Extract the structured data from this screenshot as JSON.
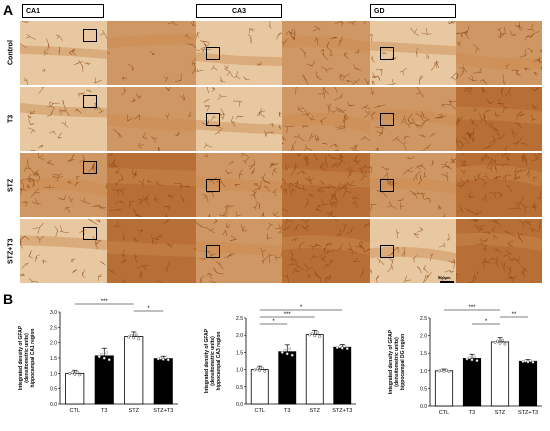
{
  "panel_a_label": "A",
  "panel_b_label": "B",
  "columns": [
    "CA1",
    "CA3",
    "GD"
  ],
  "rows": [
    "Control",
    "T3",
    "STZ",
    "STZ+T3"
  ],
  "scale_bar_text": "500µm",
  "colors": {
    "tissue": "#c98a4e",
    "tissue_dark": "#8b4513",
    "tissue_light": "#e8c8a0",
    "bar_black": "#000000"
  },
  "chart_data": [
    {
      "type": "bar",
      "title": "",
      "ylabel": "Integrated density of GFAP (densitometric units) hippocampal CA1 region",
      "categories": [
        "CTL",
        "T3",
        "STZ",
        "STZ+T3"
      ],
      "values": [
        1.0,
        1.57,
        2.2,
        1.48
      ],
      "errors": [
        0.1,
        0.25,
        0.15,
        0.08
      ],
      "fills": [
        "white",
        "black",
        "white",
        "black"
      ],
      "ylim": [
        0,
        3.0
      ],
      "yticks": [
        "0.0",
        "0.5",
        "1.0",
        "1.5",
        "2.0",
        "2.5",
        "3.0"
      ],
      "significance": [
        {
          "from": 0,
          "to": 2,
          "label": "***"
        },
        {
          "from": 2,
          "to": 3,
          "label": "*"
        }
      ]
    },
    {
      "type": "bar",
      "title": "",
      "ylabel": "Integrated density of GFAP (densitometric units) hippocampal CA3 region",
      "categories": [
        "CTL",
        "T3",
        "STZ",
        "STZ+T3"
      ],
      "values": [
        1.0,
        1.52,
        2.02,
        1.65
      ],
      "errors": [
        0.1,
        0.2,
        0.12,
        0.08
      ],
      "fills": [
        "white",
        "black",
        "white",
        "black"
      ],
      "ylim": [
        0,
        2.5
      ],
      "yticks": [
        "0.0",
        "0.5",
        "1.0",
        "1.5",
        "2.0",
        "2.5"
      ],
      "significance": [
        {
          "from": 0,
          "to": 3,
          "label": "*"
        },
        {
          "from": 0,
          "to": 2,
          "label": "***"
        },
        {
          "from": 0,
          "to": 1,
          "label": "*"
        }
      ]
    },
    {
      "type": "bar",
      "title": "",
      "ylabel": "Integrated density of GFAP (densitometric units) hippocampal DG region",
      "categories": [
        "CTL",
        "T3",
        "STZ",
        "STZ+T3"
      ],
      "values": [
        1.0,
        1.35,
        1.82,
        1.27
      ],
      "errors": [
        0.05,
        0.12,
        0.12,
        0.05
      ],
      "fills": [
        "white",
        "black",
        "white",
        "black"
      ],
      "ylim": [
        0,
        2.5
      ],
      "yticks": [
        "0.0",
        "0.5",
        "1.0",
        "1.5",
        "2.0",
        "2.5"
      ],
      "significance": [
        {
          "from": 0,
          "to": 2,
          "label": "***"
        },
        {
          "from": 2,
          "to": 3,
          "label": "**"
        },
        {
          "from": 1,
          "to": 2,
          "label": "*"
        }
      ]
    }
  ]
}
